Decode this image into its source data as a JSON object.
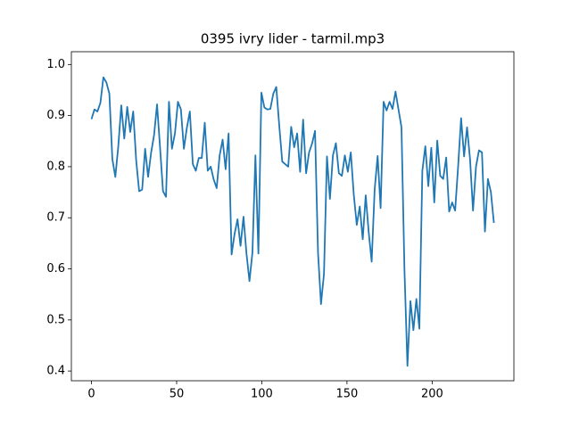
{
  "chart_data": {
    "type": "line",
    "title": "0395 ivry lider - tarmil.mp3",
    "x": [
      0,
      1.75,
      3.5,
      5.25,
      7,
      8.75,
      10.5,
      12.25,
      14,
      15.75,
      17.5,
      19.25,
      21,
      22.75,
      24.5,
      26.25,
      28,
      29.75,
      31.5,
      33.25,
      35,
      36.75,
      38.5,
      40.25,
      42,
      43.75,
      45.5,
      47.25,
      49,
      50.75,
      52.5,
      54.25,
      56,
      57.75,
      59.5,
      61.25,
      63,
      64.75,
      66.5,
      68.25,
      70,
      71.75,
      73.5,
      75.25,
      77,
      78.75,
      80.5,
      82.25,
      84,
      85.75,
      87.5,
      89.25,
      91,
      92.75,
      94.5,
      96.25,
      98,
      99.75,
      101.5,
      103.25,
      105,
      106.75,
      108.5,
      110.25,
      112,
      113.75,
      115.5,
      117.25,
      119,
      120.75,
      122.5,
      124.25,
      126,
      127.75,
      129.5,
      131.25,
      133,
      134.75,
      136.5,
      138.25,
      140,
      141.75,
      143.5,
      145.25,
      147,
      148.75,
      150.5,
      152.25,
      154,
      155.75,
      157.5,
      159.25,
      161,
      162.75,
      164.5,
      166.25,
      168,
      169.75,
      171.5,
      173.25,
      175,
      176.75,
      178.5,
      180.25,
      182,
      183.75,
      185.5,
      187.25,
      189,
      190.75,
      192.5,
      194.25,
      196,
      197.75,
      199.5,
      201.25,
      203,
      204.75,
      206.5,
      208.25,
      210,
      211.75,
      213.5,
      215.25,
      217,
      218.75,
      220.5,
      222.25,
      224,
      225.75,
      227.5,
      229.25,
      231,
      232.75,
      234.5,
      236.25
    ],
    "series": [
      {
        "color": "#1f77b4",
        "values": [
          0.893,
          0.912,
          0.908,
          0.925,
          0.975,
          0.965,
          0.943,
          0.815,
          0.78,
          0.84,
          0.92,
          0.855,
          0.917,
          0.868,
          0.908,
          0.812,
          0.752,
          0.755,
          0.835,
          0.78,
          0.827,
          0.862,
          0.922,
          0.838,
          0.752,
          0.741,
          0.927,
          0.835,
          0.865,
          0.927,
          0.912,
          0.835,
          0.876,
          0.908,
          0.805,
          0.792,
          0.817,
          0.817,
          0.886,
          0.792,
          0.8,
          0.775,
          0.758,
          0.822,
          0.853,
          0.795,
          0.865,
          0.628,
          0.668,
          0.697,
          0.645,
          0.702,
          0.63,
          0.576,
          0.632,
          0.822,
          0.63,
          0.945,
          0.916,
          0.912,
          0.913,
          0.943,
          0.956,
          0.88,
          0.81,
          0.805,
          0.8,
          0.878,
          0.838,
          0.865,
          0.79,
          0.892,
          0.787,
          0.828,
          0.845,
          0.87,
          0.632,
          0.531,
          0.59,
          0.82,
          0.737,
          0.822,
          0.846,
          0.787,
          0.782,
          0.822,
          0.79,
          0.828,
          0.745,
          0.686,
          0.722,
          0.658,
          0.744,
          0.672,
          0.614,
          0.755,
          0.821,
          0.719,
          0.927,
          0.91,
          0.927,
          0.913,
          0.947,
          0.912,
          0.877,
          0.598,
          0.41,
          0.537,
          0.48,
          0.541,
          0.483,
          0.792,
          0.84,
          0.762,
          0.837,
          0.73,
          0.851,
          0.782,
          0.776,
          0.818,
          0.712,
          0.73,
          0.714,
          0.8,
          0.895,
          0.82,
          0.877,
          0.815,
          0.714,
          0.8,
          0.832,
          0.828,
          0.673,
          0.776,
          0.75,
          0.69
        ]
      }
    ],
    "xlim": [
      -11.8,
      248
    ],
    "ylim": [
      0.381,
      1.025
    ],
    "xticks": [
      0,
      50,
      100,
      150,
      200
    ],
    "yticks": [
      0.4,
      0.5,
      0.6,
      0.7,
      0.8,
      0.9,
      {
        "value": 1,
        "label": "1.0"
      }
    ]
  }
}
